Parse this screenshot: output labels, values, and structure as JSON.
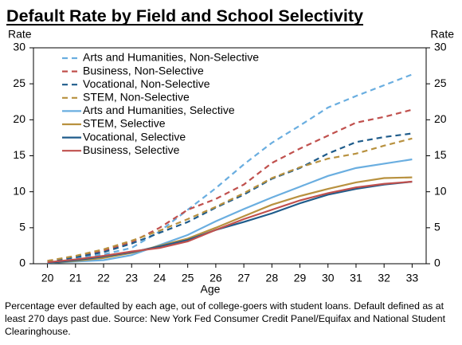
{
  "chart_data": {
    "type": "line",
    "title": "Default Rate by Field and School Selectivity",
    "ylabel": "Rate",
    "y2label": "Rate",
    "xlabel": "Age",
    "note": "Percentage ever defaulted by each age, out of college-goers with student loans. Default defined as at least 270 days past due. Source: New York Fed Consumer Credit Panel/Equifax and National Student Clearinghouse.",
    "x": [
      20,
      21,
      22,
      23,
      24,
      25,
      26,
      27,
      28,
      29,
      30,
      31,
      32,
      33
    ],
    "xlim": [
      19.5,
      33.5
    ],
    "xticks": [
      20,
      21,
      22,
      23,
      24,
      25,
      26,
      27,
      28,
      29,
      30,
      31,
      32,
      33
    ],
    "ylim": [
      0,
      30
    ],
    "yticks": [
      0,
      5,
      10,
      15,
      20,
      25,
      30
    ],
    "y2lim": [
      0,
      30
    ],
    "y2ticks": [
      0,
      5,
      10,
      15,
      20,
      25,
      30
    ],
    "legend": "upper-left",
    "series": [
      {
        "name": "Arts and Humanities, Non-Selective",
        "color": "#6aaee0",
        "dashed": true,
        "values": [
          0.3,
          0.8,
          1.3,
          2.2,
          4.5,
          7.5,
          10.5,
          13.8,
          16.8,
          19.2,
          21.7,
          23.3,
          24.8,
          26.3
        ]
      },
      {
        "name": "Business, Non-Selective",
        "color": "#c0504d",
        "dashed": true,
        "values": [
          0.4,
          1.0,
          1.8,
          3.0,
          5.0,
          7.5,
          9.0,
          11.0,
          14.0,
          16.0,
          17.8,
          19.6,
          20.4,
          21.4
        ]
      },
      {
        "name": "Vocational, Non-Selective",
        "color": "#1f5c8b",
        "dashed": true,
        "values": [
          0.3,
          0.9,
          1.6,
          2.8,
          4.3,
          5.8,
          7.8,
          9.6,
          11.8,
          13.3,
          15.3,
          16.9,
          17.6,
          18.1
        ]
      },
      {
        "name": "STEM, Non-Selective",
        "color": "#b8913f",
        "dashed": true,
        "values": [
          0.4,
          1.1,
          2.0,
          3.2,
          4.6,
          6.2,
          7.9,
          9.8,
          11.9,
          13.4,
          14.6,
          15.3,
          16.4,
          17.4
        ]
      },
      {
        "name": "Arts and Humanities, Selective",
        "color": "#6aaee0",
        "dashed": false,
        "values": [
          0.1,
          0.3,
          0.5,
          1.2,
          2.6,
          4.0,
          5.9,
          7.6,
          9.2,
          10.7,
          12.2,
          13.3,
          13.9,
          14.5
        ]
      },
      {
        "name": "STEM, Selective",
        "color": "#b8913f",
        "dashed": false,
        "values": [
          0.1,
          0.4,
          0.8,
          1.5,
          2.5,
          3.5,
          5.0,
          6.6,
          8.2,
          9.4,
          10.4,
          11.3,
          11.9,
          12.0
        ]
      },
      {
        "name": "Vocational, Selective",
        "color": "#1f5c8b",
        "dashed": false,
        "values": [
          0.1,
          0.5,
          1.0,
          1.6,
          2.4,
          3.3,
          4.7,
          5.8,
          7.0,
          8.4,
          9.6,
          10.4,
          11.0,
          11.4
        ]
      },
      {
        "name": "Business, Selective",
        "color": "#c0504d",
        "dashed": false,
        "values": [
          0.2,
          0.6,
          1.1,
          1.7,
          2.2,
          3.1,
          4.7,
          6.2,
          7.5,
          8.8,
          9.8,
          10.6,
          11.1,
          11.4
        ]
      }
    ]
  }
}
